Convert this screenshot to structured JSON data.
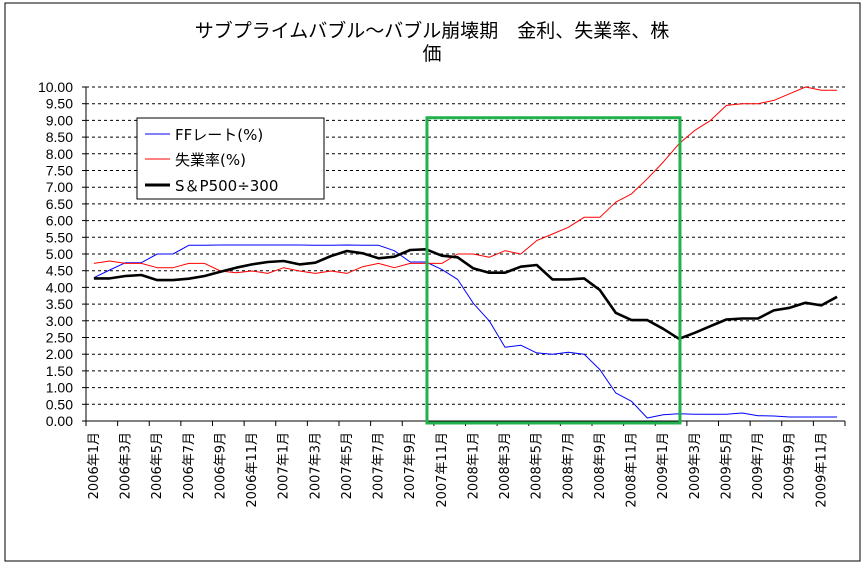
{
  "chart_data": {
    "type": "line",
    "title": "サブプライムバブル～バブル崩壊期　金利、失業率、株価",
    "title_line1": "サブプライムバブル～バブル崩壊期　金利、失業率、株",
    "title_line2": "価",
    "xlabel": "",
    "ylabel": "",
    "ylim": [
      0,
      10
    ],
    "y_ticks": [
      "0.00",
      "0.50",
      "1.00",
      "1.50",
      "2.00",
      "2.50",
      "3.00",
      "3.50",
      "4.00",
      "4.50",
      "5.00",
      "5.50",
      "6.00",
      "6.50",
      "7.00",
      "7.50",
      "8.00",
      "8.50",
      "9.00",
      "9.50",
      "10.00"
    ],
    "grid": "horizontal dashed",
    "legend_position": "top-left",
    "x": [
      "2006年1月",
      "2006年2月",
      "2006年3月",
      "2006年4月",
      "2006年5月",
      "2006年6月",
      "2006年7月",
      "2006年8月",
      "2006年9月",
      "2006年10月",
      "2006年11月",
      "2006年12月",
      "2007年1月",
      "2007年2月",
      "2007年3月",
      "2007年4月",
      "2007年5月",
      "2007年6月",
      "2007年7月",
      "2007年8月",
      "2007年9月",
      "2007年10月",
      "2007年11月",
      "2007年12月",
      "2008年1月",
      "2008年2月",
      "2008年3月",
      "2008年4月",
      "2008年5月",
      "2008年6月",
      "2008年7月",
      "2008年8月",
      "2008年9月",
      "2008年10月",
      "2008年11月",
      "2008年12月",
      "2009年1月",
      "2009年2月",
      "2009年3月",
      "2009年4月",
      "2009年5月",
      "2009年6月",
      "2009年7月",
      "2009年8月",
      "2009年9月",
      "2009年10月",
      "2009年11月",
      "2009年12月"
    ],
    "x_tick_labels": [
      "2006年1月",
      "2006年3月",
      "2006年5月",
      "2006年7月",
      "2006年9月",
      "2006年11月",
      "2007年1月",
      "2007年3月",
      "2007年5月",
      "2007年7月",
      "2007年9月",
      "2007年11月",
      "2008年1月",
      "2008年3月",
      "2008年5月",
      "2008年7月",
      "2008年9月",
      "2008年11月",
      "2009年1月",
      "2009年3月",
      "2009年5月",
      "2009年7月",
      "2009年9月",
      "2009年11月"
    ],
    "series": [
      {
        "name": "FFレート(%)",
        "color": "#0000ff",
        "values": [
          4.29,
          4.52,
          4.74,
          4.74,
          5.0,
          5.0,
          5.26,
          5.26,
          5.27,
          5.27,
          5.27,
          5.27,
          5.27,
          5.27,
          5.26,
          5.26,
          5.27,
          5.26,
          5.26,
          5.1,
          4.76,
          4.76,
          4.54,
          4.24,
          3.52,
          3.0,
          2.21,
          2.27,
          2.04,
          2.0,
          2.06,
          2.0,
          1.54,
          0.84,
          0.59,
          0.09,
          0.19,
          0.22,
          0.2,
          0.2,
          0.2,
          0.24,
          0.16,
          0.15,
          0.12,
          0.12,
          0.12,
          0.12
        ]
      },
      {
        "name": "失業率(%)",
        "color": "#ff0000",
        "values": [
          4.72,
          4.79,
          4.72,
          4.72,
          4.59,
          4.59,
          4.72,
          4.72,
          4.49,
          4.44,
          4.49,
          4.42,
          4.59,
          4.49,
          4.42,
          4.49,
          4.42,
          4.62,
          4.72,
          4.59,
          4.72,
          4.72,
          4.72,
          5.0,
          5.0,
          4.9,
          5.1,
          5.0,
          5.4,
          5.6,
          5.8,
          6.1,
          6.1,
          6.55,
          6.8,
          7.25,
          7.75,
          8.3,
          8.7,
          9.0,
          9.45,
          9.5,
          9.5,
          9.6,
          9.8,
          10.0,
          9.9,
          9.9
        ]
      },
      {
        "name": "S＆P500÷300",
        "color": "#000000",
        "values": [
          4.27,
          4.27,
          4.34,
          4.37,
          4.22,
          4.22,
          4.26,
          4.34,
          4.47,
          4.59,
          4.69,
          4.76,
          4.79,
          4.69,
          4.74,
          4.94,
          5.09,
          5.02,
          4.87,
          4.92,
          5.12,
          5.14,
          4.95,
          4.9,
          4.57,
          4.44,
          4.44,
          4.62,
          4.67,
          4.24,
          4.24,
          4.27,
          3.92,
          3.24,
          3.02,
          3.02,
          2.76,
          2.46,
          2.64,
          2.84,
          3.04,
          3.07,
          3.07,
          3.31,
          3.39,
          3.54,
          3.46,
          3.72
        ]
      }
    ],
    "highlight": {
      "from": "2007年10月",
      "to": "2009年2月",
      "color": "#22b14c"
    }
  }
}
